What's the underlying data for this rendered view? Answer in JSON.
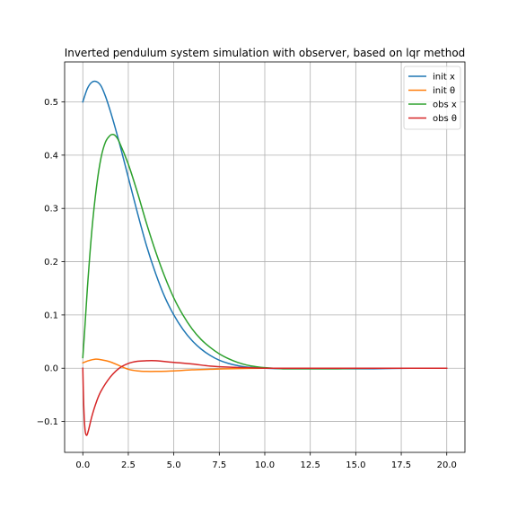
{
  "chart_data": {
    "type": "line",
    "title": "Inverted pendulum system simulation with observer, based on lqr method",
    "xlabel": "",
    "ylabel": "",
    "xlim": [
      -1.0,
      21.0
    ],
    "ylim": [
      -0.158,
      0.575
    ],
    "x_ticks": [
      0.0,
      2.5,
      5.0,
      7.5,
      10.0,
      12.5,
      15.0,
      17.5,
      20.0
    ],
    "x_tick_labels": [
      "0.0",
      "2.5",
      "5.0",
      "7.5",
      "10.0",
      "12.5",
      "15.0",
      "17.5",
      "20.0"
    ],
    "y_ticks": [
      -0.1,
      0.0,
      0.1,
      0.2,
      0.3,
      0.4,
      0.5
    ],
    "y_tick_labels": [
      "−0.1",
      "0.0",
      "0.1",
      "0.2",
      "0.3",
      "0.4",
      "0.5"
    ],
    "grid": true,
    "legend_position": "top-right",
    "series": [
      {
        "name": "init x",
        "color": "#1f77b4",
        "x": [
          0.0,
          0.25,
          0.5,
          0.75,
          1.0,
          1.25,
          1.5,
          1.75,
          2.0,
          2.5,
          3.0,
          3.5,
          4.0,
          4.5,
          5.0,
          5.5,
          6.0,
          6.5,
          7.0,
          7.5,
          8.0,
          8.5,
          9.0,
          10.0,
          11.0,
          12.0,
          14.0,
          16.0,
          18.0,
          20.0
        ],
        "y": [
          0.5,
          0.525,
          0.537,
          0.538,
          0.53,
          0.51,
          0.484,
          0.455,
          0.424,
          0.358,
          0.292,
          0.23,
          0.178,
          0.134,
          0.1,
          0.073,
          0.052,
          0.036,
          0.024,
          0.015,
          0.009,
          0.005,
          0.002,
          0.0,
          -0.001,
          -0.001,
          -0.001,
          -0.001,
          0.0,
          0.0
        ]
      },
      {
        "name": "init θ",
        "color": "#ff7f0e",
        "x": [
          0.0,
          0.3,
          0.7,
          1.0,
          1.5,
          2.0,
          2.5,
          3.0,
          3.5,
          4.0,
          5.0,
          6.0,
          7.0,
          8.0,
          10.0,
          12.0,
          14.0,
          16.0,
          18.0,
          20.0
        ],
        "y": [
          0.01,
          0.014,
          0.017,
          0.016,
          0.012,
          0.005,
          -0.002,
          -0.005,
          -0.006,
          -0.006,
          -0.005,
          -0.003,
          -0.002,
          -0.001,
          0.0,
          0.0,
          0.0,
          0.0,
          0.0,
          0.0
        ]
      },
      {
        "name": "obs x",
        "color": "#2ca02c",
        "x": [
          0.0,
          0.1,
          0.25,
          0.5,
          0.75,
          1.0,
          1.25,
          1.5,
          1.65,
          1.8,
          2.0,
          2.5,
          3.0,
          3.5,
          4.0,
          4.5,
          5.0,
          5.5,
          6.0,
          6.5,
          7.0,
          7.5,
          8.0,
          8.5,
          9.0,
          9.5,
          10.0,
          11.0,
          12.0,
          14.0,
          16.0,
          18.0,
          20.0
        ],
        "y": [
          0.02,
          0.07,
          0.15,
          0.26,
          0.34,
          0.395,
          0.425,
          0.437,
          0.439,
          0.436,
          0.425,
          0.383,
          0.33,
          0.272,
          0.219,
          0.172,
          0.132,
          0.1,
          0.074,
          0.054,
          0.039,
          0.027,
          0.018,
          0.011,
          0.006,
          0.003,
          0.001,
          -0.001,
          -0.001,
          -0.001,
          0.0,
          0.0,
          0.0
        ]
      },
      {
        "name": "obs θ",
        "color": "#d62728",
        "x": [
          0.0,
          0.05,
          0.12,
          0.2,
          0.3,
          0.5,
          0.75,
          1.0,
          1.5,
          2.0,
          2.5,
          3.0,
          3.5,
          4.0,
          5.0,
          6.0,
          7.0,
          8.0,
          9.0,
          10.0,
          12.0,
          14.0,
          16.0,
          18.0,
          20.0
        ],
        "y": [
          0.0,
          -0.07,
          -0.115,
          -0.126,
          -0.118,
          -0.09,
          -0.063,
          -0.043,
          -0.017,
          0.0,
          0.009,
          0.013,
          0.014,
          0.014,
          0.011,
          0.008,
          0.004,
          0.002,
          0.001,
          0.0,
          0.0,
          0.0,
          0.0,
          0.0,
          0.0
        ]
      }
    ]
  }
}
